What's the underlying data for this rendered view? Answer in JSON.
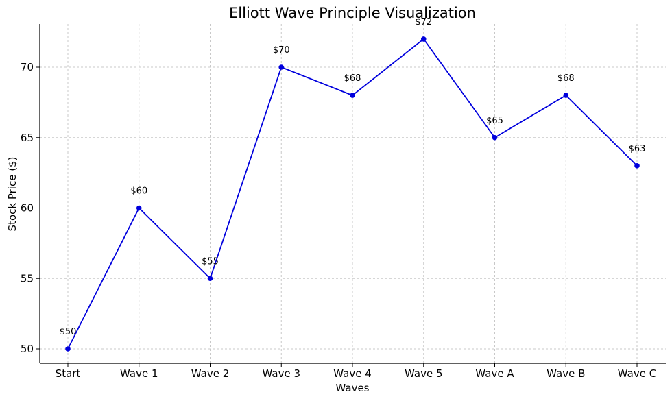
{
  "chart_data": {
    "type": "line",
    "title": "Elliott Wave Principle Visualization",
    "xlabel": "Waves",
    "ylabel": "Stock Price ($)",
    "categories": [
      "Start",
      "Wave 1",
      "Wave 2",
      "Wave 3",
      "Wave 4",
      "Wave 5",
      "Wave A",
      "Wave B",
      "Wave C"
    ],
    "values": [
      50,
      60,
      55,
      70,
      68,
      72,
      65,
      68,
      63
    ],
    "data_labels": [
      "$50",
      "$60",
      "$55",
      "$70",
      "$68",
      "$72",
      "$65",
      "$68",
      "$63"
    ],
    "yticks": [
      50,
      55,
      60,
      65,
      70
    ],
    "ylim": [
      49,
      73
    ],
    "grid": true,
    "line_color": "#0000dd",
    "marker": "circle",
    "background": "#ffffff"
  }
}
